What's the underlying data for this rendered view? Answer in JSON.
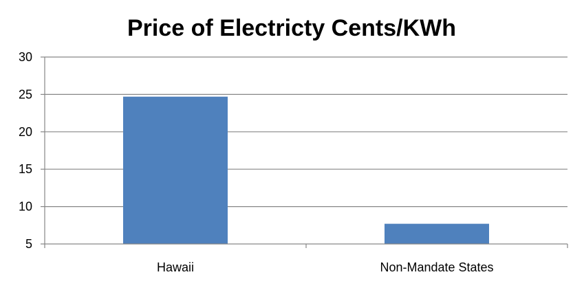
{
  "chart_data": {
    "type": "bar",
    "title": "Price of Electricty Cents/KWh",
    "xlabel": "",
    "ylabel": "",
    "categories": [
      "Hawaii",
      "Non-Mandate States"
    ],
    "values": [
      24.7,
      7.7
    ],
    "ylim": [
      5,
      30
    ],
    "yticks": [
      "5",
      "10",
      "15",
      "20",
      "25",
      "30"
    ],
    "grid": true,
    "legend": "none",
    "bar_color": "#4f81bd",
    "grid_color": "#868686",
    "axis_color": "#868686"
  }
}
